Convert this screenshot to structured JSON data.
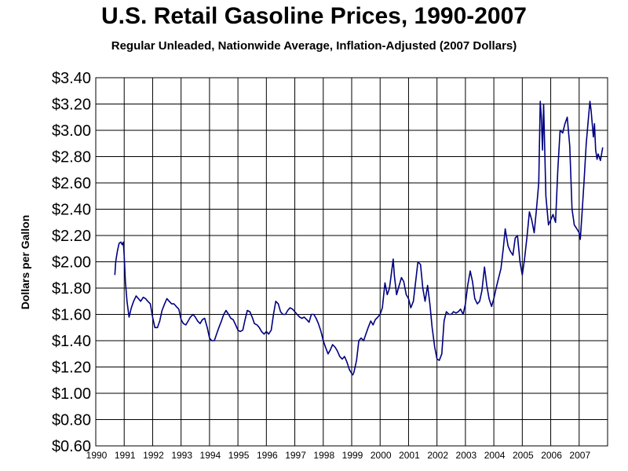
{
  "chart_data": {
    "type": "line",
    "title": "U.S. Retail Gasoline Prices, 1990-2007",
    "subtitle": "Regular Unleaded, Nationwide Average, Inflation-Adjusted (2007 Dollars)",
    "xlabel": "",
    "ylabel": "Dollars per Gallon",
    "xlim": [
      1990,
      2008
    ],
    "ylim": [
      0.6,
      3.4
    ],
    "grid": true,
    "x_ticks": [
      "1990",
      "1991",
      "1992",
      "1993",
      "1994",
      "1995",
      "1996",
      "1997",
      "1998",
      "1999",
      "2000",
      "2001",
      "2002",
      "2003",
      "2004",
      "2005",
      "2006",
      "2007"
    ],
    "y_ticks": [
      "$0.60",
      "$0.80",
      "$1.00",
      "$1.20",
      "$1.40",
      "$1.60",
      "$1.80",
      "$2.00",
      "$2.20",
      "$2.40",
      "$2.60",
      "$2.80",
      "$3.00",
      "$3.20",
      "$3.40"
    ],
    "y_tick_values": [
      0.6,
      0.8,
      1.0,
      1.2,
      1.4,
      1.6,
      1.8,
      2.0,
      2.2,
      2.4,
      2.6,
      2.8,
      3.0,
      3.2,
      3.4
    ],
    "series": [
      {
        "color": "#000080",
        "points": [
          [
            1990.67,
            1.9
          ],
          [
            1990.7,
            2.0
          ],
          [
            1990.76,
            2.08
          ],
          [
            1990.82,
            2.14
          ],
          [
            1990.88,
            2.15
          ],
          [
            1990.93,
            2.13
          ],
          [
            1990.97,
            2.15
          ],
          [
            1991.0,
            2.05
          ],
          [
            1991.04,
            1.85
          ],
          [
            1991.1,
            1.7
          ],
          [
            1991.17,
            1.58
          ],
          [
            1991.25,
            1.65
          ],
          [
            1991.33,
            1.7
          ],
          [
            1991.42,
            1.74
          ],
          [
            1991.5,
            1.72
          ],
          [
            1991.58,
            1.7
          ],
          [
            1991.67,
            1.73
          ],
          [
            1991.75,
            1.72
          ],
          [
            1991.83,
            1.7
          ],
          [
            1991.92,
            1.68
          ],
          [
            1992.0,
            1.58
          ],
          [
            1992.08,
            1.5
          ],
          [
            1992.17,
            1.5
          ],
          [
            1992.25,
            1.55
          ],
          [
            1992.33,
            1.63
          ],
          [
            1992.42,
            1.68
          ],
          [
            1992.5,
            1.72
          ],
          [
            1992.58,
            1.7
          ],
          [
            1992.67,
            1.68
          ],
          [
            1992.75,
            1.68
          ],
          [
            1992.83,
            1.66
          ],
          [
            1992.92,
            1.64
          ],
          [
            1993.0,
            1.56
          ],
          [
            1993.08,
            1.53
          ],
          [
            1993.17,
            1.52
          ],
          [
            1993.25,
            1.55
          ],
          [
            1993.33,
            1.58
          ],
          [
            1993.42,
            1.6
          ],
          [
            1993.5,
            1.58
          ],
          [
            1993.58,
            1.55
          ],
          [
            1993.67,
            1.53
          ],
          [
            1993.75,
            1.56
          ],
          [
            1993.83,
            1.57
          ],
          [
            1993.92,
            1.5
          ],
          [
            1994.0,
            1.42
          ],
          [
            1994.08,
            1.4
          ],
          [
            1994.17,
            1.4
          ],
          [
            1994.25,
            1.45
          ],
          [
            1994.33,
            1.5
          ],
          [
            1994.42,
            1.55
          ],
          [
            1994.5,
            1.6
          ],
          [
            1994.58,
            1.63
          ],
          [
            1994.67,
            1.6
          ],
          [
            1994.75,
            1.57
          ],
          [
            1994.83,
            1.56
          ],
          [
            1994.92,
            1.52
          ],
          [
            1995.0,
            1.48
          ],
          [
            1995.08,
            1.47
          ],
          [
            1995.17,
            1.48
          ],
          [
            1995.25,
            1.56
          ],
          [
            1995.33,
            1.63
          ],
          [
            1995.42,
            1.62
          ],
          [
            1995.5,
            1.58
          ],
          [
            1995.58,
            1.53
          ],
          [
            1995.67,
            1.52
          ],
          [
            1995.75,
            1.5
          ],
          [
            1995.83,
            1.47
          ],
          [
            1995.92,
            1.45
          ],
          [
            1996.0,
            1.47
          ],
          [
            1996.08,
            1.45
          ],
          [
            1996.17,
            1.48
          ],
          [
            1996.25,
            1.6
          ],
          [
            1996.33,
            1.7
          ],
          [
            1996.42,
            1.68
          ],
          [
            1996.5,
            1.62
          ],
          [
            1996.58,
            1.6
          ],
          [
            1996.67,
            1.6
          ],
          [
            1996.75,
            1.63
          ],
          [
            1996.83,
            1.65
          ],
          [
            1996.92,
            1.64
          ],
          [
            1997.0,
            1.62
          ],
          [
            1997.08,
            1.6
          ],
          [
            1997.17,
            1.58
          ],
          [
            1997.25,
            1.57
          ],
          [
            1997.33,
            1.58
          ],
          [
            1997.42,
            1.56
          ],
          [
            1997.5,
            1.54
          ],
          [
            1997.58,
            1.6
          ],
          [
            1997.67,
            1.6
          ],
          [
            1997.75,
            1.57
          ],
          [
            1997.83,
            1.53
          ],
          [
            1997.92,
            1.47
          ],
          [
            1998.0,
            1.4
          ],
          [
            1998.08,
            1.35
          ],
          [
            1998.17,
            1.3
          ],
          [
            1998.25,
            1.33
          ],
          [
            1998.33,
            1.37
          ],
          [
            1998.42,
            1.35
          ],
          [
            1998.5,
            1.32
          ],
          [
            1998.58,
            1.28
          ],
          [
            1998.67,
            1.26
          ],
          [
            1998.75,
            1.28
          ],
          [
            1998.83,
            1.24
          ],
          [
            1998.92,
            1.18
          ],
          [
            1999.0,
            1.15
          ],
          [
            1999.04,
            1.14
          ],
          [
            1999.08,
            1.16
          ],
          [
            1999.17,
            1.25
          ],
          [
            1999.25,
            1.4
          ],
          [
            1999.33,
            1.42
          ],
          [
            1999.42,
            1.4
          ],
          [
            1999.5,
            1.45
          ],
          [
            1999.58,
            1.5
          ],
          [
            1999.67,
            1.55
          ],
          [
            1999.75,
            1.52
          ],
          [
            1999.83,
            1.56
          ],
          [
            1999.92,
            1.58
          ],
          [
            2000.0,
            1.6
          ],
          [
            2000.08,
            1.65
          ],
          [
            2000.17,
            1.84
          ],
          [
            2000.25,
            1.75
          ],
          [
            2000.33,
            1.8
          ],
          [
            2000.42,
            1.95
          ],
          [
            2000.46,
            2.02
          ],
          [
            2000.5,
            1.9
          ],
          [
            2000.58,
            1.75
          ],
          [
            2000.67,
            1.82
          ],
          [
            2000.75,
            1.88
          ],
          [
            2000.83,
            1.85
          ],
          [
            2000.92,
            1.75
          ],
          [
            2001.0,
            1.72
          ],
          [
            2001.08,
            1.65
          ],
          [
            2001.17,
            1.7
          ],
          [
            2001.25,
            1.85
          ],
          [
            2001.33,
            2.0
          ],
          [
            2001.42,
            1.98
          ],
          [
            2001.5,
            1.8
          ],
          [
            2001.58,
            1.7
          ],
          [
            2001.67,
            1.82
          ],
          [
            2001.75,
            1.68
          ],
          [
            2001.83,
            1.5
          ],
          [
            2001.92,
            1.35
          ],
          [
            2002.0,
            1.26
          ],
          [
            2002.08,
            1.25
          ],
          [
            2002.17,
            1.3
          ],
          [
            2002.25,
            1.55
          ],
          [
            2002.33,
            1.62
          ],
          [
            2002.42,
            1.6
          ],
          [
            2002.5,
            1.6
          ],
          [
            2002.58,
            1.62
          ],
          [
            2002.67,
            1.61
          ],
          [
            2002.75,
            1.62
          ],
          [
            2002.83,
            1.64
          ],
          [
            2002.92,
            1.6
          ],
          [
            2003.0,
            1.68
          ],
          [
            2003.08,
            1.82
          ],
          [
            2003.17,
            1.93
          ],
          [
            2003.25,
            1.85
          ],
          [
            2003.33,
            1.72
          ],
          [
            2003.42,
            1.68
          ],
          [
            2003.5,
            1.7
          ],
          [
            2003.58,
            1.78
          ],
          [
            2003.67,
            1.96
          ],
          [
            2003.75,
            1.82
          ],
          [
            2003.83,
            1.72
          ],
          [
            2003.92,
            1.66
          ],
          [
            2004.0,
            1.72
          ],
          [
            2004.08,
            1.8
          ],
          [
            2004.17,
            1.88
          ],
          [
            2004.25,
            1.95
          ],
          [
            2004.33,
            2.1
          ],
          [
            2004.4,
            2.25
          ],
          [
            2004.5,
            2.12
          ],
          [
            2004.58,
            2.08
          ],
          [
            2004.67,
            2.05
          ],
          [
            2004.75,
            2.18
          ],
          [
            2004.83,
            2.2
          ],
          [
            2004.92,
            2.0
          ],
          [
            2005.0,
            1.9
          ],
          [
            2005.08,
            2.02
          ],
          [
            2005.17,
            2.2
          ],
          [
            2005.25,
            2.38
          ],
          [
            2005.33,
            2.32
          ],
          [
            2005.42,
            2.22
          ],
          [
            2005.5,
            2.4
          ],
          [
            2005.58,
            2.6
          ],
          [
            2005.63,
            3.22
          ],
          [
            2005.67,
            3.1
          ],
          [
            2005.71,
            2.85
          ],
          [
            2005.75,
            3.2
          ],
          [
            2005.83,
            2.5
          ],
          [
            2005.92,
            2.28
          ],
          [
            2006.0,
            2.32
          ],
          [
            2006.08,
            2.36
          ],
          [
            2006.17,
            2.3
          ],
          [
            2006.25,
            2.7
          ],
          [
            2006.33,
            3.0
          ],
          [
            2006.42,
            2.98
          ],
          [
            2006.5,
            3.05
          ],
          [
            2006.58,
            3.1
          ],
          [
            2006.67,
            2.88
          ],
          [
            2006.75,
            2.4
          ],
          [
            2006.83,
            2.28
          ],
          [
            2006.92,
            2.25
          ],
          [
            2007.0,
            2.22
          ],
          [
            2007.04,
            2.17
          ],
          [
            2007.08,
            2.3
          ],
          [
            2007.17,
            2.6
          ],
          [
            2007.25,
            2.9
          ],
          [
            2007.33,
            3.1
          ],
          [
            2007.38,
            3.22
          ],
          [
            2007.42,
            3.15
          ],
          [
            2007.5,
            2.95
          ],
          [
            2007.54,
            3.05
          ],
          [
            2007.58,
            2.85
          ],
          [
            2007.63,
            2.78
          ],
          [
            2007.67,
            2.82
          ],
          [
            2007.75,
            2.77
          ],
          [
            2007.83,
            2.87
          ]
        ]
      }
    ]
  }
}
